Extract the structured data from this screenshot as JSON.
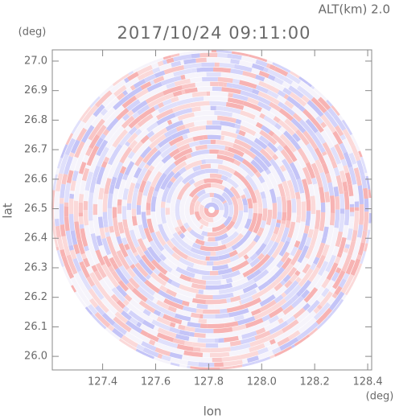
{
  "chart_data": {
    "type": "radar-ppi",
    "altitude_label": "ALT(km) 2.0",
    "title": "2017/10/24 09:11:00",
    "y_unit": "(deg)",
    "x_unit": "(deg)",
    "ylabel": "lat",
    "xlabel": "lon",
    "xlim": [
      127.21,
      128.415
    ],
    "ylim": [
      25.954,
      27.038
    ],
    "xticks": [
      127.4,
      127.6,
      127.8,
      {
        "value": 128.0,
        "label": "128.0"
      },
      128.2,
      128.4
    ],
    "yticks": [
      {
        "value": 26.0,
        "label": "26.0"
      },
      26.1,
      26.2,
      26.3,
      26.4,
      26.5,
      26.6,
      26.7,
      26.8,
      26.9,
      {
        "value": 27.0,
        "label": "27.0"
      }
    ]
  }
}
